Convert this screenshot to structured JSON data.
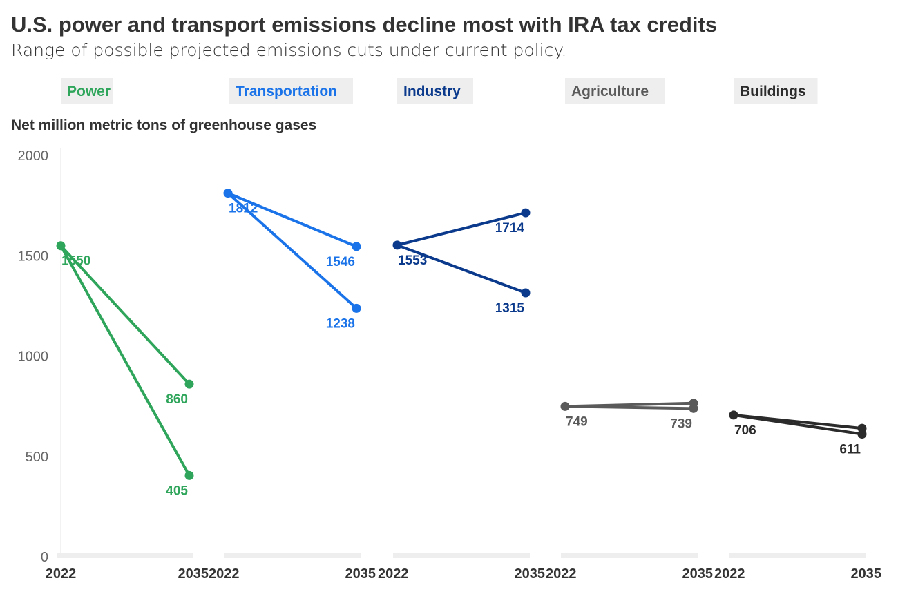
{
  "chart_data": {
    "type": "line",
    "title": "U.S. power and transport emissions decline most with IRA tax credits",
    "subtitle": "Range of possible projected emissions cuts under current policy.",
    "ylabel": "Net million metric tons of greenhouse gases",
    "ylim": [
      0,
      2000
    ],
    "yticks": [
      0,
      500,
      1000,
      1500,
      2000
    ],
    "x": [
      "2022",
      "2035"
    ],
    "grid": false,
    "panels": [
      {
        "name": "Power",
        "color": "#2ea55a",
        "start": 1550,
        "ends": [
          860,
          405
        ],
        "labels": [
          "1550",
          "860",
          "405"
        ]
      },
      {
        "name": "Transportation",
        "color": "#1a73e8",
        "start": 1812,
        "ends": [
          1546,
          1238
        ],
        "labels": [
          "1812",
          "1546",
          "1238"
        ]
      },
      {
        "name": "Industry",
        "color": "#0b3a8c",
        "start": 1553,
        "ends": [
          1714,
          1315
        ],
        "labels": [
          "1553",
          "1714",
          "1315"
        ]
      },
      {
        "name": "Agriculture",
        "color": "#5a5a5a",
        "start": 749,
        "ends": [
          765,
          739
        ],
        "labels": [
          "749",
          "739"
        ]
      },
      {
        "name": "Buildings",
        "color": "#2b2b2b",
        "start": 706,
        "ends": [
          640,
          611
        ],
        "labels": [
          "706",
          "611"
        ]
      }
    ]
  }
}
